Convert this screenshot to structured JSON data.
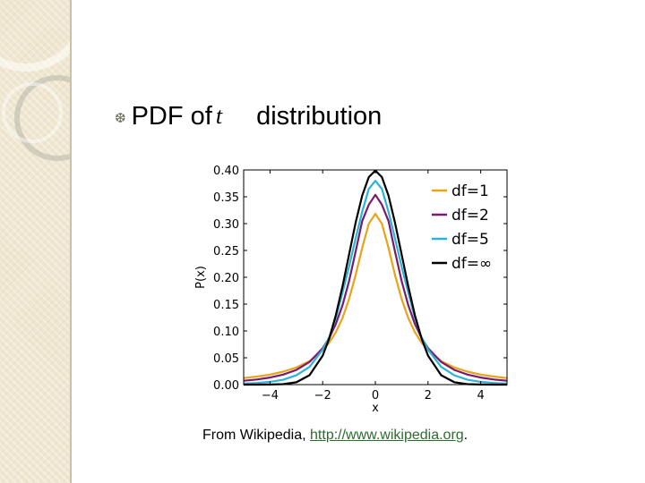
{
  "slide": {
    "heading_bullet_icon": "bullet-glyph",
    "heading_prefix": "PDF of",
    "heading_symbol": "t",
    "heading_suffix": "distribution",
    "caption_prefix": "From Wikipedia, ",
    "caption_link": "http://www.wikipedia.org",
    "caption_suffix": ".",
    "colors": {
      "sidebar": "#efe6cf",
      "link": "#2e6b2e"
    }
  },
  "chart_data": {
    "type": "line",
    "title": "",
    "xlabel": "x",
    "ylabel": "P(x)",
    "xlim": [
      -5,
      5
    ],
    "ylim": [
      0,
      0.4
    ],
    "xticks": [
      -4,
      -2,
      0,
      2,
      4
    ],
    "xtick_labels": [
      "−4",
      "−2",
      "0",
      "2",
      "4"
    ],
    "yticks": [
      0,
      0.05,
      0.1,
      0.15,
      0.2,
      0.25,
      0.3,
      0.35,
      0.4
    ],
    "ytick_labels": [
      "0.00",
      "0.05",
      "0.10",
      "0.15",
      "0.20",
      "0.25",
      "0.30",
      "0.35",
      "0.40"
    ],
    "grid": false,
    "legend_position": "top-right",
    "x": [
      -5,
      -4.5,
      -4,
      -3.5,
      -3,
      -2.5,
      -2,
      -1.75,
      -1.5,
      -1.25,
      -1,
      -0.75,
      -0.5,
      -0.25,
      0,
      0.25,
      0.5,
      0.75,
      1,
      1.25,
      1.5,
      1.75,
      2,
      2.5,
      3,
      3.5,
      4,
      4.5,
      5
    ],
    "series": [
      {
        "name": "df=1",
        "color": "#e8a317",
        "values": [
          0.0122,
          0.015,
          0.0187,
          0.0241,
          0.0318,
          0.0439,
          0.0637,
          0.0785,
          0.0979,
          0.1239,
          0.1592,
          0.2037,
          0.2546,
          0.2996,
          0.3183,
          0.2996,
          0.2546,
          0.2037,
          0.1592,
          0.1239,
          0.0979,
          0.0785,
          0.0637,
          0.0439,
          0.0318,
          0.0241,
          0.0187,
          0.015,
          0.0122
        ]
      },
      {
        "name": "df=2",
        "color": "#7a1a6e",
        "values": [
          0.0071,
          0.0095,
          0.0131,
          0.0187,
          0.0274,
          0.0422,
          0.068,
          0.0872,
          0.1131,
          0.1476,
          0.1925,
          0.2474,
          0.3046,
          0.3354,
          0.3536,
          0.3354,
          0.3046,
          0.2474,
          0.1925,
          0.1476,
          0.1131,
          0.0872,
          0.068,
          0.0422,
          0.0274,
          0.0187,
          0.0131,
          0.0095,
          0.0071
        ]
      },
      {
        "name": "df=5",
        "color": "#2ab4d9",
        "values": [
          0.0018,
          0.003,
          0.0051,
          0.009,
          0.0173,
          0.033,
          0.0651,
          0.0886,
          0.1245,
          0.171,
          0.2197,
          0.2718,
          0.322,
          0.3646,
          0.3796,
          0.3646,
          0.322,
          0.2718,
          0.2197,
          0.171,
          0.1245,
          0.0886,
          0.0651,
          0.033,
          0.0173,
          0.009,
          0.0051,
          0.003,
          0.0018
        ]
      },
      {
        "name": "df=∞",
        "color": "#000000",
        "values": [
          0.0,
          0.0,
          0.0001,
          0.0009,
          0.0044,
          0.0175,
          0.054,
          0.0863,
          0.1295,
          0.1826,
          0.242,
          0.3011,
          0.3521,
          0.3867,
          0.3989,
          0.3867,
          0.3521,
          0.3011,
          0.242,
          0.1826,
          0.1295,
          0.0863,
          0.054,
          0.0175,
          0.0044,
          0.0009,
          0.0001,
          0.0,
          0.0
        ]
      }
    ]
  }
}
